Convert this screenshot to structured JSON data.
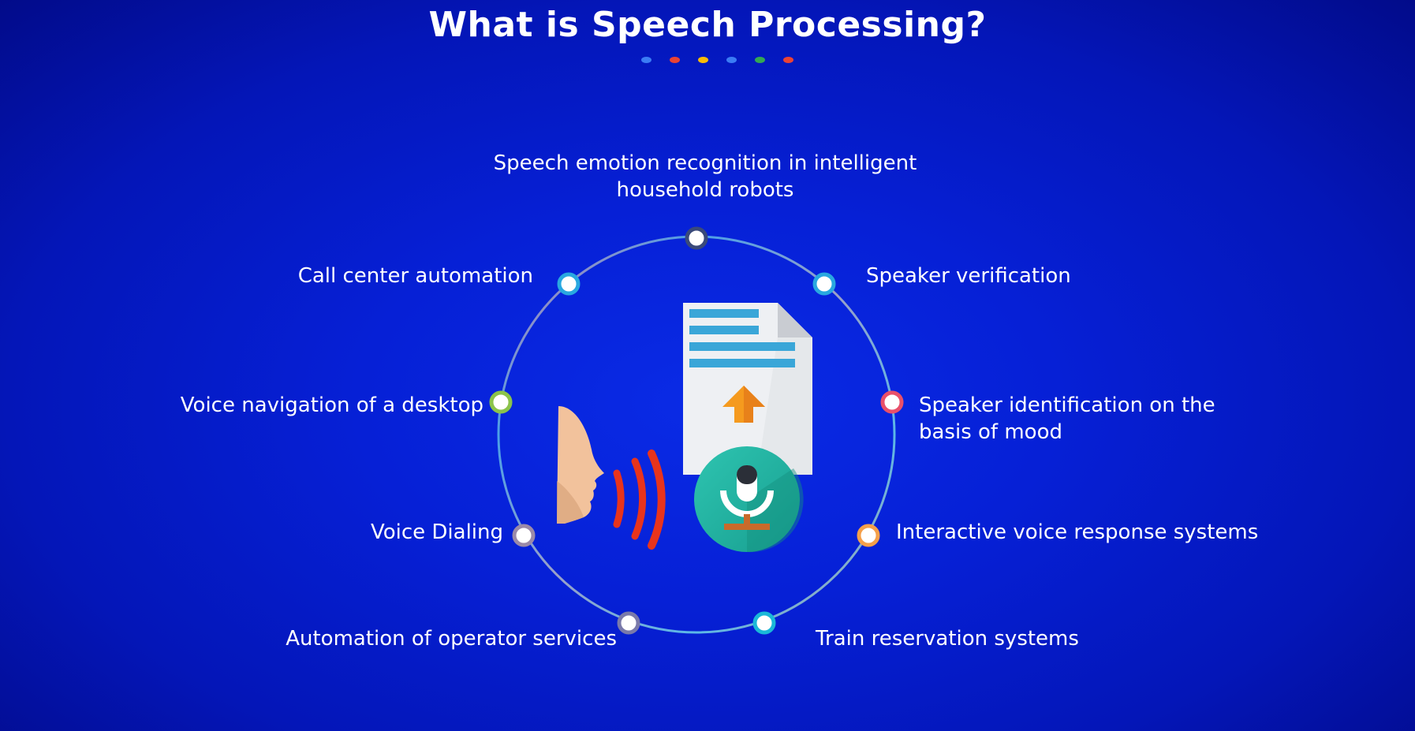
{
  "title": "What is Speech Processing?",
  "title_dots": [
    "#3b7cf5",
    "#ea4335",
    "#fbbc05",
    "#3b7cf5",
    "#34a853",
    "#ea4335"
  ],
  "applications": {
    "top": "Speech emotion recognition in intelligent\nhousehold robots",
    "call_center": "Call center automation",
    "speaker_verification": "Speaker verification",
    "voice_navigation": "Voice navigation of a desktop",
    "speaker_identification": "Speaker identification  on the\nbasis of mood",
    "voice_dialing": "Voice Dialing",
    "ivr": "Interactive voice response systems",
    "operator_services": "Automation  of operator services",
    "train_reservation": "Train reservation systems"
  },
  "node_colors": {
    "top": "#3a4a7a",
    "call_center": "#29a8e0",
    "speaker_verification": "#29a8e0",
    "voice_navigation": "#8bc34a",
    "speaker_identification": "#e8506a",
    "voice_dialing": "#9b8aa8",
    "ivr": "#f5a04a",
    "operator_services": "#7a7aaa",
    "train_reservation": "#1ab8d8"
  },
  "icons": [
    "document-icon",
    "upload-arrow-icon",
    "face-profile-icon",
    "sound-wave-icon",
    "microphone-icon"
  ]
}
